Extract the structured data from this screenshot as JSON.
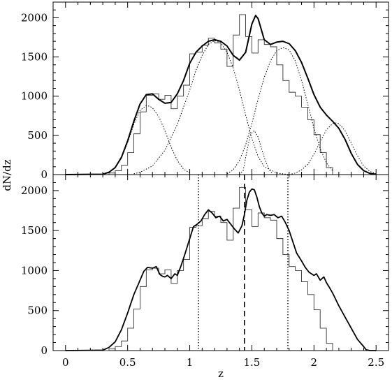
{
  "chart_data": [
    {
      "panel": "top",
      "type": "line",
      "xlabel": "",
      "ylabel": "dN/dz",
      "xlim": [
        -0.1,
        2.6
      ],
      "ylim": [
        0,
        2200
      ],
      "x_ticks": [
        "0",
        "0.5",
        "1",
        "1.5",
        "2",
        "2.5"
      ],
      "y_ticks": [
        "0",
        "500",
        "1000",
        "1500",
        "2000"
      ],
      "y_tick_values": [
        0,
        500,
        1000,
        1500,
        2000
      ],
      "histogram": {
        "bin_width": 0.05,
        "x_start": 0.1,
        "values": [
          0,
          0,
          0,
          0,
          0,
          20,
          50,
          120,
          280,
          520,
          800,
          1010,
          1030,
          960,
          1010,
          840,
          1000,
          1140,
          1540,
          1560,
          1650,
          1740,
          1680,
          1600,
          1380,
          1780,
          2040,
          1760,
          1550,
          1720,
          1660,
          1630,
          1400,
          1200,
          1050,
          1000,
          860,
          700,
          510,
          280,
          90,
          0
        ]
      },
      "fit_total": {
        "x": [
          0.0,
          0.3,
          0.35,
          0.4,
          0.45,
          0.5,
          0.55,
          0.6,
          0.65,
          0.7,
          0.75,
          0.8,
          0.85,
          0.9,
          0.95,
          1.0,
          1.05,
          1.1,
          1.15,
          1.2,
          1.25,
          1.3,
          1.35,
          1.4,
          1.45,
          1.5,
          1.53,
          1.55,
          1.6,
          1.65,
          1.7,
          1.75,
          1.8,
          1.85,
          1.9,
          1.95,
          2.0,
          2.05,
          2.1,
          2.15,
          2.2,
          2.25,
          2.3,
          2.35,
          2.4,
          2.45,
          2.5
        ],
        "y": [
          0,
          5,
          30,
          90,
          220,
          430,
          680,
          900,
          1020,
          1030,
          960,
          910,
          920,
          1030,
          1200,
          1420,
          1560,
          1640,
          1700,
          1720,
          1700,
          1640,
          1520,
          1460,
          1560,
          1920,
          2030,
          1990,
          1720,
          1660,
          1690,
          1700,
          1670,
          1580,
          1430,
          1230,
          1020,
          860,
          760,
          680,
          590,
          450,
          270,
          130,
          50,
          15,
          5
        ]
      },
      "fit_components": [
        {
          "x": [
            0.35,
            0.4,
            0.45,
            0.5,
            0.55,
            0.6,
            0.65,
            0.68,
            0.7,
            0.75,
            0.8,
            0.85,
            0.9,
            0.95,
            1.0
          ],
          "y": [
            30,
            90,
            210,
            410,
            640,
            820,
            880,
            870,
            850,
            740,
            560,
            350,
            180,
            70,
            20
          ]
        },
        {
          "x": [
            0.55,
            0.6,
            0.7,
            0.8,
            0.9,
            1.0,
            1.05,
            1.1,
            1.15,
            1.2,
            1.25,
            1.3,
            1.35,
            1.4,
            1.45,
            1.5,
            1.55,
            1.6,
            1.7,
            1.8
          ],
          "y": [
            10,
            30,
            110,
            310,
            640,
            1080,
            1330,
            1520,
            1660,
            1710,
            1680,
            1560,
            1360,
            1080,
            760,
            460,
            230,
            100,
            20,
            0
          ]
        },
        {
          "x": [
            1.4,
            1.43,
            1.46,
            1.49,
            1.52,
            1.55,
            1.58,
            1.61,
            1.64,
            1.67
          ],
          "y": [
            0,
            50,
            300,
            520,
            560,
            480,
            320,
            170,
            60,
            0
          ]
        },
        {
          "x": [
            1.3,
            1.35,
            1.4,
            1.45,
            1.5,
            1.55,
            1.6,
            1.65,
            1.7,
            1.75,
            1.8,
            1.85,
            1.9,
            1.95,
            2.0,
            2.05,
            2.1,
            2.15
          ],
          "y": [
            10,
            60,
            180,
            380,
            650,
            960,
            1240,
            1450,
            1580,
            1620,
            1590,
            1450,
            1200,
            900,
            590,
            330,
            150,
            50
          ]
        },
        {
          "x": [
            1.8,
            1.85,
            1.9,
            1.95,
            2.0,
            2.05,
            2.1,
            2.15,
            2.18,
            2.2,
            2.25,
            2.3,
            2.35,
            2.4,
            2.45,
            2.5
          ],
          "y": [
            0,
            20,
            60,
            130,
            260,
            420,
            570,
            650,
            660,
            650,
            560,
            400,
            240,
            110,
            40,
            10
          ]
        }
      ]
    },
    {
      "panel": "bottom",
      "type": "line",
      "xlabel": "z",
      "ylabel": "",
      "xlim": [
        -0.1,
        2.6
      ],
      "ylim": [
        0,
        2200
      ],
      "x_ticks": [
        "0",
        "0.5",
        "1",
        "1.5",
        "2",
        "2.5"
      ],
      "x_tick_values": [
        0,
        0.5,
        1,
        1.5,
        2,
        2.5
      ],
      "y_ticks": [
        "0",
        "500",
        "1000",
        "1500",
        "2000"
      ],
      "y_tick_values": [
        0,
        500,
        1000,
        1500,
        2000
      ],
      "histogram": {
        "bin_width": 0.05,
        "x_start": 0.1,
        "values": [
          0,
          0,
          0,
          0,
          0,
          20,
          50,
          120,
          280,
          520,
          800,
          1010,
          1030,
          960,
          1010,
          840,
          1000,
          1140,
          1540,
          1560,
          1650,
          1740,
          1680,
          1600,
          1380,
          1780,
          2040,
          1760,
          1550,
          1720,
          1660,
          1630,
          1400,
          1200,
          1050,
          1000,
          860,
          700,
          510,
          280,
          90,
          0
        ]
      },
      "smooth_curve": {
        "x": [
          0.0,
          0.3,
          0.35,
          0.4,
          0.45,
          0.5,
          0.55,
          0.6,
          0.63,
          0.66,
          0.7,
          0.73,
          0.76,
          0.78,
          0.8,
          0.82,
          0.85,
          0.88,
          0.9,
          0.93,
          0.96,
          1.0,
          1.03,
          1.06,
          1.09,
          1.12,
          1.15,
          1.18,
          1.21,
          1.24,
          1.27,
          1.3,
          1.33,
          1.36,
          1.39,
          1.42,
          1.44,
          1.46,
          1.48,
          1.5,
          1.52,
          1.54,
          1.56,
          1.58,
          1.6,
          1.62,
          1.65,
          1.68,
          1.71,
          1.74,
          1.77,
          1.8,
          1.83,
          1.86,
          1.9,
          1.93,
          1.96,
          2.0,
          2.02,
          2.05,
          2.08,
          2.1,
          2.12,
          2.15,
          2.2,
          2.25,
          2.3,
          2.35,
          2.4,
          2.42,
          2.45,
          2.5
        ],
        "y": [
          0,
          5,
          40,
          110,
          260,
          470,
          700,
          880,
          990,
          1040,
          1030,
          1050,
          950,
          930,
          920,
          940,
          900,
          960,
          940,
          1060,
          1200,
          1400,
          1550,
          1580,
          1620,
          1700,
          1760,
          1720,
          1660,
          1680,
          1620,
          1640,
          1580,
          1520,
          1470,
          1560,
          1700,
          1880,
          1980,
          2020,
          2010,
          1920,
          1800,
          1720,
          1680,
          1700,
          1690,
          1700,
          1660,
          1680,
          1600,
          1500,
          1360,
          1220,
          1120,
          1040,
          980,
          940,
          960,
          880,
          920,
          850,
          800,
          720,
          560,
          420,
          280,
          140,
          50,
          10,
          0,
          0
        ]
      },
      "markers": [
        {
          "x": 1.07,
          "style": "dotted"
        },
        {
          "x": 1.44,
          "style": "dashed"
        },
        {
          "x": 1.79,
          "style": "dotted"
        }
      ]
    }
  ]
}
